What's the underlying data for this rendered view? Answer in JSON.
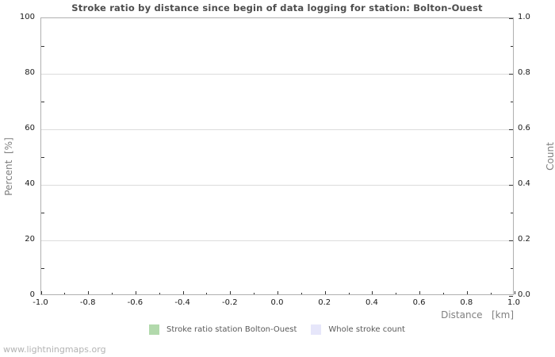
{
  "title": "Stroke ratio by distance since begin of data logging for station: Bolton-Ouest",
  "watermark": "www.lightningmaps.org",
  "colors": {
    "series_stroke_ratio": "#b2d9ac",
    "series_whole_count": "#e6e6fa",
    "gridline": "#dcdcdc",
    "plot_border": "#b0b0b0",
    "tick": "#333333",
    "tick_label": "#1a1a1a",
    "axis_label": "#808080",
    "title": "#4d4d4d",
    "legend_text": "#595959",
    "watermark": "#b3b3b3",
    "background": "#ffffff"
  },
  "chart_data": {
    "type": "bar",
    "title": "Stroke ratio by distance since begin of data logging for station: Bolton-Ouest",
    "grid": "horizontal-only",
    "legend_position": "bottom",
    "x_axis": {
      "label": "Distance   [km]",
      "min": -1.0,
      "max": 1.0,
      "major_ticks": [
        -1.0,
        -0.8,
        -0.6,
        -0.4,
        -0.2,
        0.0,
        0.2,
        0.4,
        0.6,
        0.8,
        1.0
      ],
      "major_tick_labels": [
        "-1.0",
        "-0.8",
        "-0.6",
        "-0.4",
        "-0.2",
        "0.0",
        "0.2",
        "0.4",
        "0.6",
        "0.8",
        "1.0"
      ],
      "minor_ticks": [
        -0.9,
        -0.7,
        -0.5,
        -0.3,
        -0.1,
        0.1,
        0.3,
        0.5,
        0.7,
        0.9
      ]
    },
    "y_left": {
      "label": "Percent  [%]",
      "min": 0,
      "max": 100,
      "major_ticks": [
        0,
        20,
        40,
        60,
        80,
        100
      ],
      "major_tick_labels": [
        "0",
        "20",
        "40",
        "60",
        "80",
        "100"
      ],
      "minor_ticks": [
        10,
        30,
        50,
        70,
        90
      ]
    },
    "y_right": {
      "label": "Count",
      "min": 0.0,
      "max": 1.0,
      "major_ticks": [
        0.0,
        0.2,
        0.4,
        0.6,
        0.8,
        1.0
      ],
      "major_tick_labels": [
        "0.0",
        "0.2",
        "0.4",
        "0.6",
        "0.8",
        "1.0"
      ],
      "minor_ticks": [
        0.1,
        0.3,
        0.5,
        0.7,
        0.9
      ]
    },
    "series": [
      {
        "name": "Stroke ratio station Bolton-Ouest",
        "color": "#b2d9ac",
        "axis": "left",
        "values": []
      },
      {
        "name": "Whole stroke count",
        "color": "#e6e6fa",
        "axis": "right",
        "values": []
      }
    ]
  },
  "legend": {
    "items": [
      {
        "label": "Stroke ratio station Bolton-Ouest",
        "color": "#b2d9ac"
      },
      {
        "label": "Whole stroke count",
        "color": "#e6e6fa"
      }
    ]
  }
}
